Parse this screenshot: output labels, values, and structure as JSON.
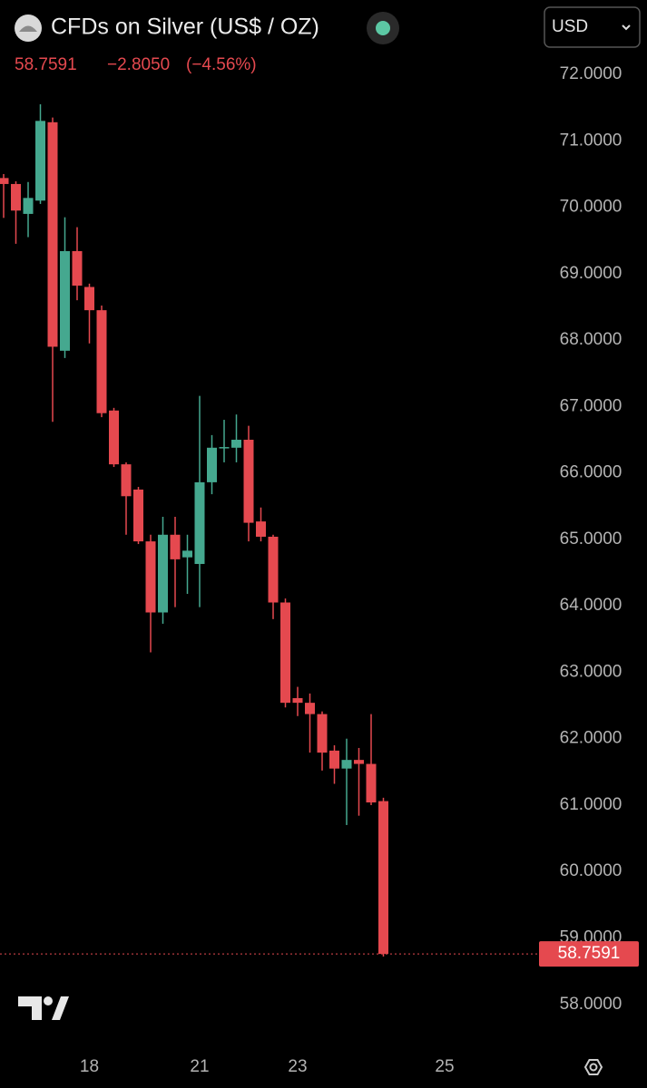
{
  "chart_data": {
    "type": "candlestick",
    "title": "CFDs on Silver (US$ / OZ)",
    "change": "−2.8050",
    "change_pct": "(−4.56%)",
    "currency": "USD",
    "up_color": "#45a88f",
    "down_color": "#e5494f",
    "categories": [
      null,
      null,
      null,
      null,
      null,
      null,
      null,
      "18",
      null,
      null,
      null,
      null,
      null,
      null,
      null,
      null,
      "21",
      null,
      null,
      null,
      null,
      null,
      null,
      null,
      "23",
      null,
      null,
      null,
      null,
      null,
      null,
      null,
      null,
      null,
      null,
      null,
      "25"
    ],
    "open": [
      70.44,
      70.35,
      69.9,
      70.1,
      71.28,
      67.84,
      69.34,
      68.8,
      68.45,
      66.94,
      66.13,
      65.75,
      64.97,
      63.9,
      65.07,
      64.73,
      64.63,
      65.86,
      66.38,
      66.38,
      66.5,
      65.27,
      65.04,
      64.05,
      62.61,
      62.54,
      62.37,
      61.82,
      61.55,
      61.68,
      61.62,
      61.06,
      null,
      null,
      null,
      null,
      null
    ],
    "high": [
      70.5,
      70.39,
      70.38,
      71.55,
      71.35,
      69.85,
      69.7,
      68.85,
      68.52,
      66.98,
      66.16,
      65.79,
      65.07,
      65.34,
      65.34,
      65.07,
      67.16,
      66.57,
      66.8,
      66.88,
      66.71,
      65.48,
      65.07,
      64.11,
      62.78,
      62.68,
      62.41,
      61.9,
      62.0,
      61.86,
      62.37,
      61.11,
      null,
      null,
      null,
      null,
      null
    ],
    "low": [
      69.84,
      69.45,
      69.55,
      70.05,
      66.77,
      67.73,
      68.6,
      67.95,
      66.84,
      66.09,
      65.07,
      64.93,
      63.3,
      63.73,
      63.98,
      64.18,
      63.98,
      65.68,
      66.16,
      66.16,
      64.97,
      64.97,
      63.8,
      62.47,
      62.34,
      61.79,
      61.52,
      61.32,
      60.7,
      60.84,
      61.0,
      58.72,
      null,
      null,
      null,
      null,
      null
    ],
    "close": [
      70.35,
      69.95,
      70.14,
      71.3,
      67.9,
      69.34,
      68.82,
      68.45,
      66.9,
      66.13,
      65.65,
      64.97,
      63.9,
      65.07,
      64.7,
      64.83,
      65.86,
      66.38,
      66.39,
      66.5,
      65.25,
      65.04,
      64.05,
      62.54,
      62.54,
      62.37,
      61.79,
      61.55,
      61.68,
      61.62,
      61.04,
      58.7591,
      null,
      null,
      null,
      null,
      null
    ],
    "ylim": [
      57.56,
      73.12
    ],
    "yticks": [
      {
        "value": 58,
        "label": "58.0000"
      },
      {
        "value": 59,
        "label": "59.0000"
      },
      {
        "value": 60,
        "label": "60.0000"
      },
      {
        "value": 61,
        "label": "61.0000"
      },
      {
        "value": 62,
        "label": "62.0000"
      },
      {
        "value": 63,
        "label": "63.0000"
      },
      {
        "value": 64,
        "label": "64.0000"
      },
      {
        "value": 65,
        "label": "65.0000"
      },
      {
        "value": 66,
        "label": "66.0000"
      },
      {
        "value": 67,
        "label": "67.0000"
      },
      {
        "value": 68,
        "label": "68.0000"
      },
      {
        "value": 69,
        "label": "69.0000"
      },
      {
        "value": 70,
        "label": "70.0000"
      },
      {
        "value": 71,
        "label": "71.0000"
      },
      {
        "value": 72,
        "label": "72.0000"
      }
    ]
  }
}
